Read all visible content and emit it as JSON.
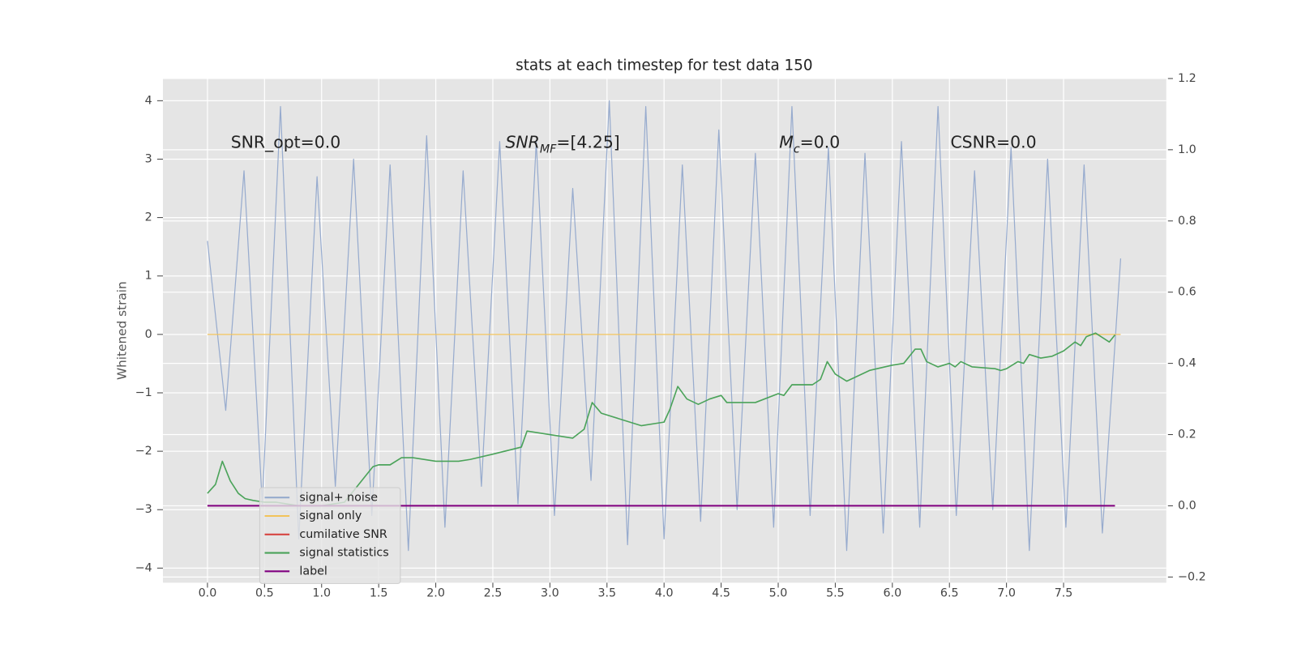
{
  "chart_data": {
    "type": "line",
    "title": "stats at each timestep for test data 150",
    "ylabel": "Whitened strain",
    "xlim": [
      -0.39,
      8.4
    ],
    "xticks": [
      {
        "value": 0,
        "label": "0.0"
      },
      0.5,
      {
        "value": 1,
        "label": "1.0"
      },
      1.5,
      {
        "value": 2,
        "label": "2.0"
      },
      2.5,
      {
        "value": 3,
        "label": "3.0"
      },
      3.5,
      {
        "value": 4,
        "label": "4.0"
      },
      4.5,
      {
        "value": 5,
        "label": "5.0"
      },
      5.5,
      {
        "value": 6,
        "label": "6.0"
      },
      6.5,
      {
        "value": 7,
        "label": "7.0"
      },
      7.5
    ],
    "ylim": [
      -4.25,
      4.38
    ],
    "yticks": [
      {
        "value": -4,
        "label": "−4"
      },
      {
        "value": -3,
        "label": "−3"
      },
      {
        "value": -2,
        "label": "−2"
      },
      {
        "value": -1,
        "label": "−1"
      },
      0,
      1,
      2,
      3,
      4
    ],
    "y2lim": [
      -0.216,
      1.2
    ],
    "y2ticks": [
      {
        "value": -0.2,
        "label": "−0.2"
      },
      {
        "value": 0,
        "label": "0.0"
      },
      0.2,
      0.4,
      0.6,
      0.8,
      {
        "value": 1,
        "label": "1.0"
      },
      1.2
    ],
    "grid": true,
    "legend": "lower left",
    "annotations": [
      {
        "parts": [
          {
            "text": "SNR_opt=0.0"
          }
        ]
      },
      {
        "parts": [
          {
            "text": "SNR",
            "italic": true
          },
          {
            "text": "MF",
            "italic": true,
            "sub": true
          },
          {
            "text": "=[4.25]"
          }
        ]
      },
      {
        "parts": [
          {
            "text": "M",
            "italic": true
          },
          {
            "text": "c",
            "italic": true,
            "sub": true
          },
          {
            "text": "=0.0"
          }
        ]
      },
      {
        "parts": [
          {
            "text": "CSNR=0.0"
          }
        ]
      }
    ],
    "series": [
      {
        "name": "signal+ noise",
        "color": "#92a8cc",
        "x": [
          0,
          0.16,
          0.32,
          0.48,
          0.64,
          0.8,
          0.96,
          1.12,
          1.28,
          1.44,
          1.6,
          1.76,
          1.92,
          2.08,
          2.24,
          2.4,
          2.56,
          2.72,
          2.88,
          3.04,
          3.2,
          3.36,
          3.52,
          3.68,
          3.84,
          4.0,
          4.16,
          4.32,
          4.48,
          4.64,
          4.8,
          4.96,
          5.12,
          5.28,
          5.44,
          5.6,
          5.76,
          5.92,
          6.08,
          6.24,
          6.4,
          6.56,
          6.72,
          6.88,
          7.04,
          7.2,
          7.36,
          7.52,
          7.68,
          7.84,
          8.0
        ],
        "values": [
          1.6,
          -1.3,
          2.8,
          -2.9,
          3.9,
          -3.5,
          2.7,
          -2.6,
          3.0,
          -3.1,
          2.9,
          -3.7,
          3.4,
          -3.3,
          2.8,
          -2.6,
          3.3,
          -2.9,
          3.3,
          -3.1,
          2.5,
          -2.5,
          4.0,
          -3.6,
          3.9,
          -3.5,
          2.9,
          -3.2,
          3.5,
          -3.0,
          3.1,
          -3.3,
          3.9,
          -3.1,
          3.2,
          -3.7,
          3.1,
          -3.4,
          3.3,
          -3.3,
          3.9,
          -3.1,
          2.8,
          -3.0,
          3.2,
          -3.7,
          3.0,
          -3.3,
          2.9,
          -3.4,
          1.3
        ]
      },
      {
        "name": "signal only",
        "color": "#f2c35a",
        "x": [
          0,
          8.0
        ],
        "values": [
          0,
          0
        ]
      },
      {
        "name": "cumilative SNR",
        "color": "#d64541",
        "axis": "y2",
        "x": [
          0,
          7.95
        ],
        "values": [
          0,
          0
        ]
      },
      {
        "name": "signal statistics",
        "color": "#4ba35a",
        "axis": "y2",
        "x": [
          0,
          0.07,
          0.13,
          0.2,
          0.27,
          0.33,
          0.4,
          0.5,
          0.6,
          0.8,
          1.0,
          1.2,
          1.3,
          1.4,
          1.45,
          1.5,
          1.6,
          1.7,
          1.8,
          2.0,
          2.2,
          2.3,
          2.5,
          2.75,
          2.8,
          3.0,
          3.2,
          3.3,
          3.37,
          3.45,
          3.6,
          3.8,
          4.0,
          4.05,
          4.12,
          4.2,
          4.3,
          4.4,
          4.5,
          4.55,
          4.8,
          5.0,
          5.05,
          5.12,
          5.3,
          5.37,
          5.43,
          5.5,
          5.6,
          5.8,
          6.0,
          6.1,
          6.2,
          6.25,
          6.3,
          6.4,
          6.5,
          6.55,
          6.6,
          6.7,
          6.9,
          6.95,
          7.0,
          7.1,
          7.15,
          7.2,
          7.3,
          7.4,
          7.5,
          7.6,
          7.65,
          7.7,
          7.78,
          7.9,
          7.95
        ],
        "values": [
          0.035,
          0.06,
          0.125,
          0.07,
          0.035,
          0.02,
          0.015,
          0.01,
          0.01,
          0.0,
          0.0,
          0.01,
          0.05,
          0.09,
          0.11,
          0.115,
          0.115,
          0.135,
          0.135,
          0.125,
          0.125,
          0.13,
          0.145,
          0.165,
          0.21,
          0.2,
          0.19,
          0.215,
          0.29,
          0.26,
          0.245,
          0.225,
          0.235,
          0.27,
          0.335,
          0.3,
          0.285,
          0.3,
          0.31,
          0.29,
          0.29,
          0.315,
          0.31,
          0.34,
          0.34,
          0.355,
          0.405,
          0.37,
          0.35,
          0.38,
          0.395,
          0.4,
          0.44,
          0.44,
          0.405,
          0.39,
          0.4,
          0.39,
          0.405,
          0.39,
          0.385,
          0.38,
          0.385,
          0.405,
          0.4,
          0.425,
          0.415,
          0.42,
          0.435,
          0.46,
          0.45,
          0.475,
          0.485,
          0.46,
          0.48
        ]
      },
      {
        "name": "label",
        "color": "#800080",
        "axis": "y2",
        "x": [
          0,
          7.95
        ],
        "values": [
          0,
          0
        ]
      }
    ]
  }
}
